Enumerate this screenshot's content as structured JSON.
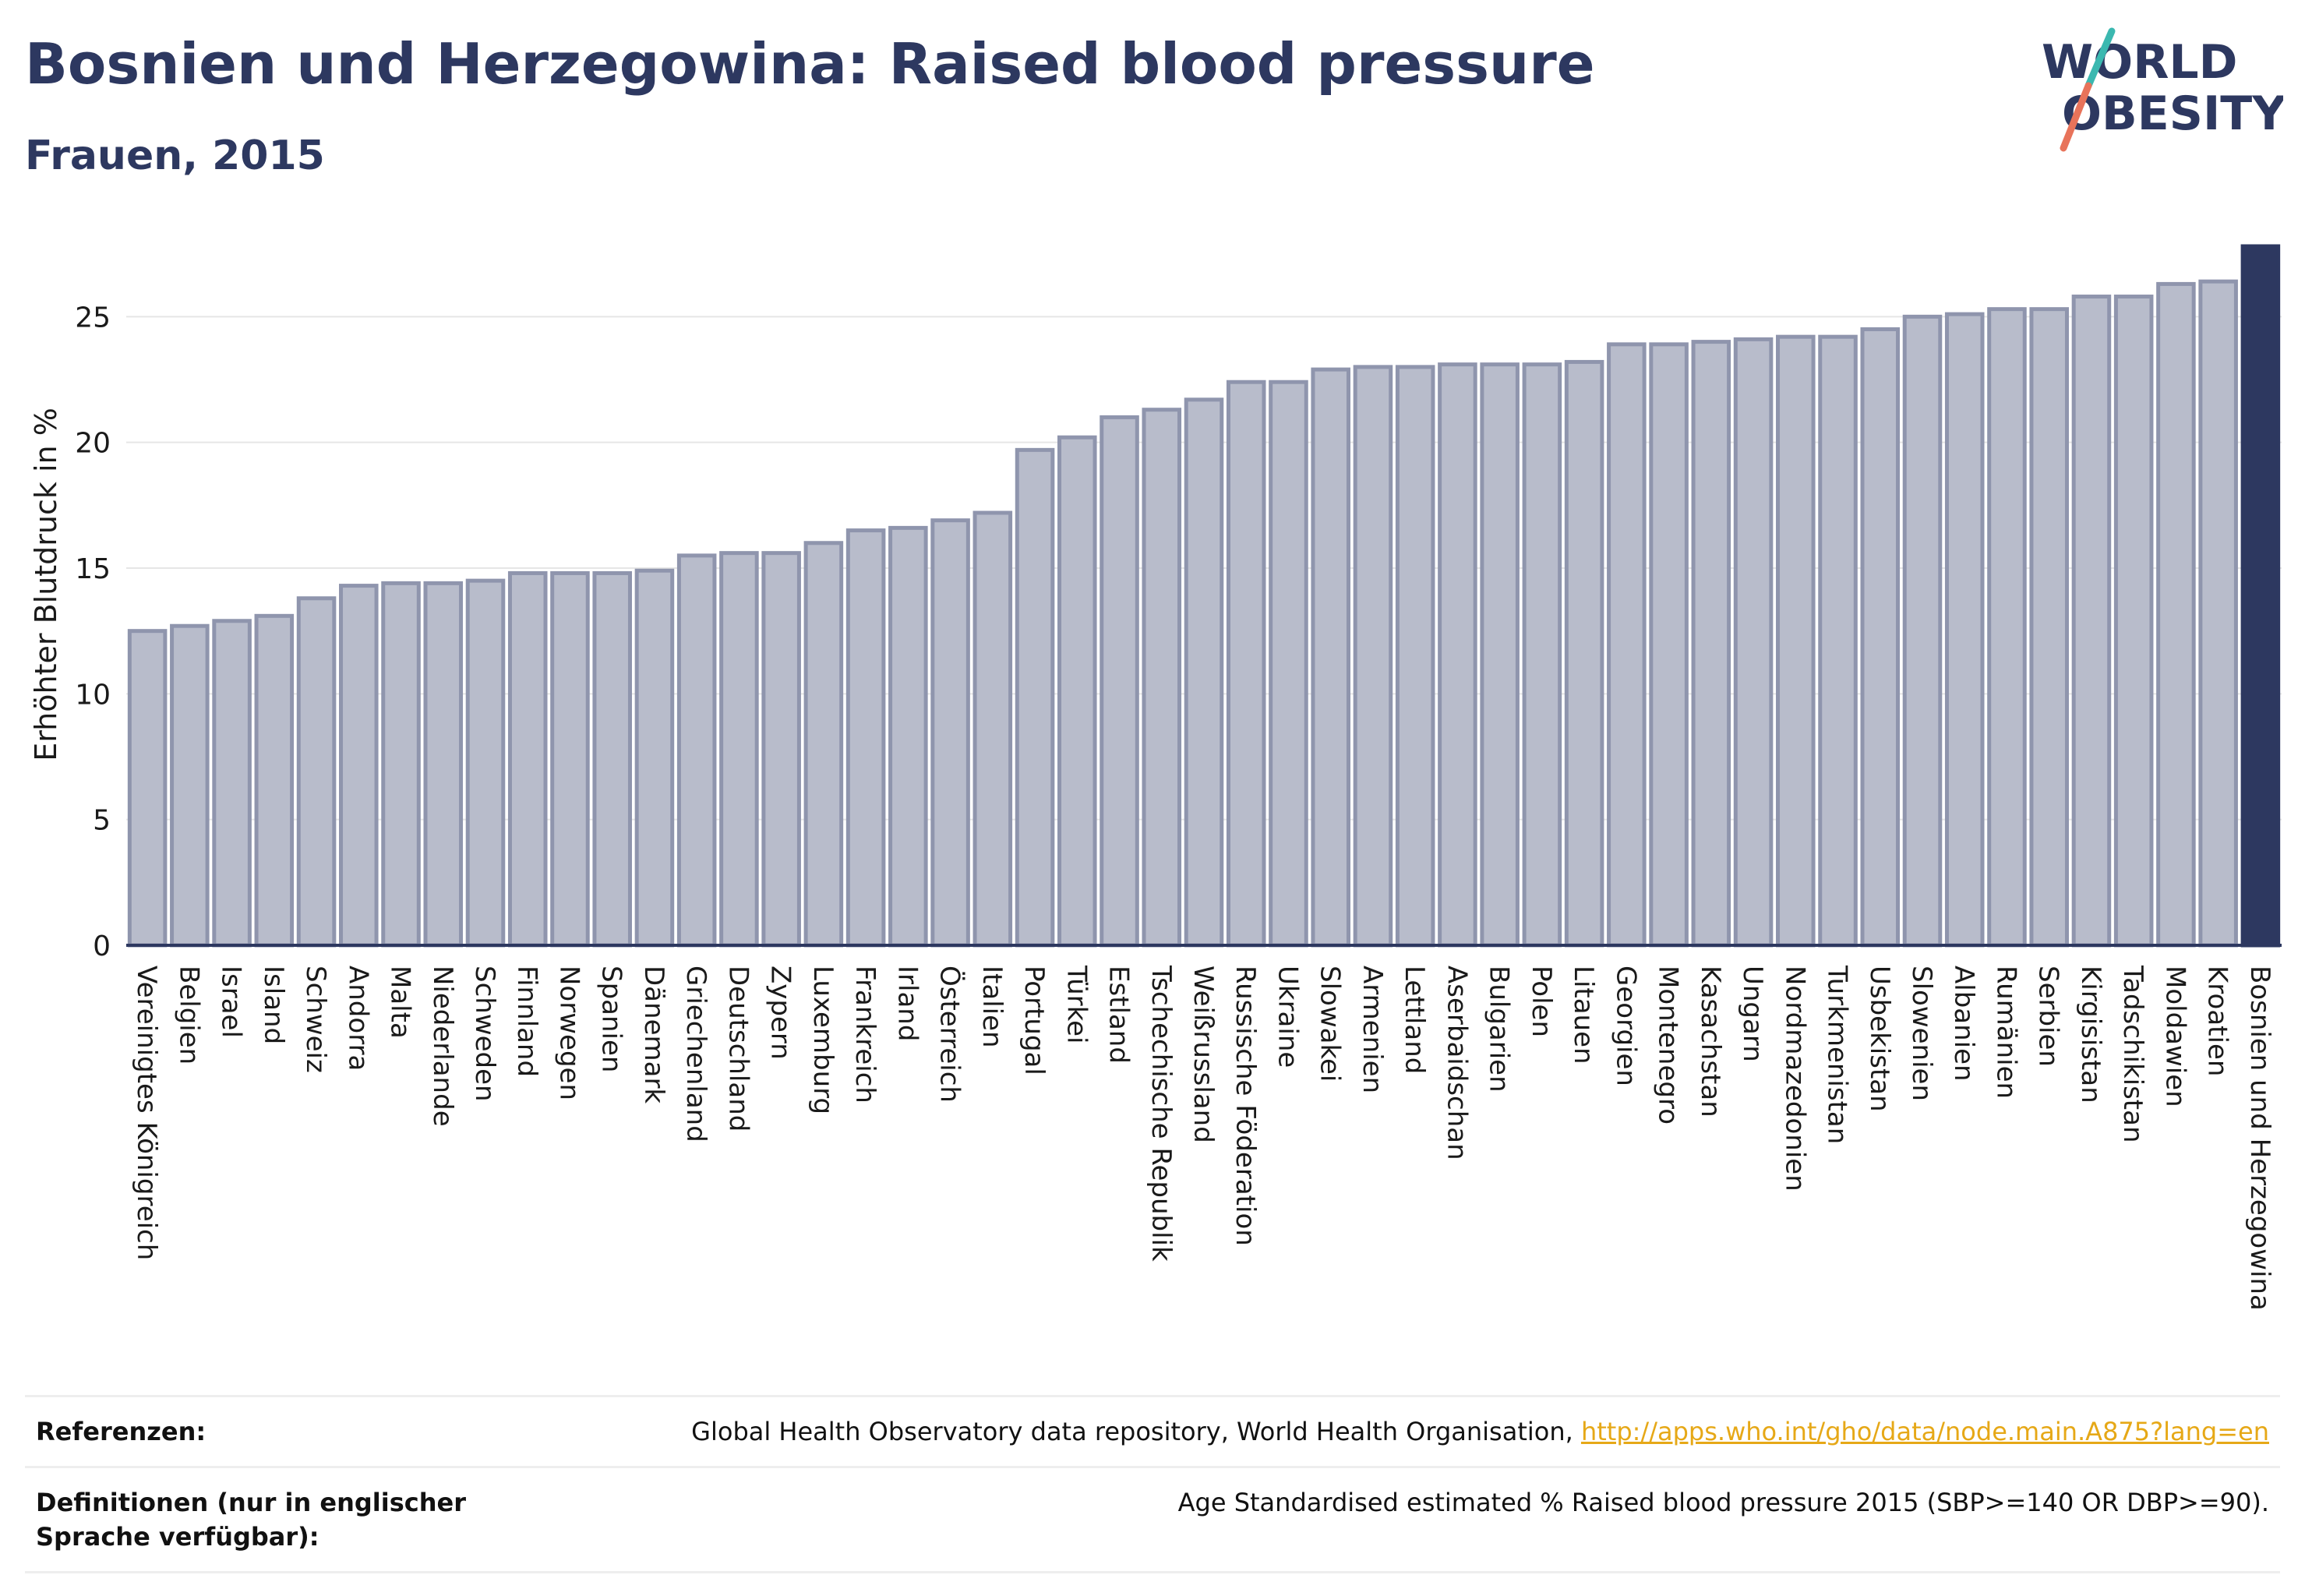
{
  "header": {
    "title": "Bosnien und Herzegowina: Raised blood pressure",
    "subtitle": "Frauen, 2015"
  },
  "logo": {
    "line1": "WORLD",
    "line2": "OBESITY"
  },
  "colors": {
    "bar_fill": "#b8bccb",
    "bar_stroke": "#8f95ad",
    "highlight": "#2d3860",
    "grid": "#e6e6e6",
    "axis": "#2d3860",
    "logo_teal": "#3bb8b0",
    "logo_coral": "#e8735a",
    "link": "#e6a817"
  },
  "chart_data": {
    "type": "bar",
    "ylabel": "Erhöhter Blutdruck in %",
    "ylim": [
      0,
      27.8
    ],
    "yticks": [
      0,
      5,
      10,
      15,
      20,
      25
    ],
    "grid": true,
    "highlight_category": "Bosnien und Herzegowina",
    "categories": [
      "Vereinigtes Königreich",
      "Belgien",
      "Israel",
      "Island",
      "Schweiz",
      "Andorra",
      "Malta",
      "Niederlande",
      "Schweden",
      "Finnland",
      "Norwegen",
      "Spanien",
      "Dänemark",
      "Griechenland",
      "Deutschland",
      "Zypern",
      "Luxemburg",
      "Frankreich",
      "Irland",
      "Österreich",
      "Italien",
      "Portugal",
      "Türkei",
      "Estland",
      "Tschechische Republik",
      "Weißrussland",
      "Russische Föderation",
      "Ukraine",
      "Slowakei",
      "Armenien",
      "Lettland",
      "Aserbaidschan",
      "Bulgarien",
      "Polen",
      "Litauen",
      "Georgien",
      "Montenegro",
      "Kasachstan",
      "Ungarn",
      "Nordmazedonien",
      "Turkmenistan",
      "Usbekistan",
      "Slowenien",
      "Albanien",
      "Rumänien",
      "Serbien",
      "Kirgisistan",
      "Tadschikistan",
      "Moldawien",
      "Kroatien",
      "Bosnien und Herzegowina"
    ],
    "values": [
      12.5,
      12.7,
      12.9,
      13.1,
      13.8,
      14.3,
      14.4,
      14.4,
      14.5,
      14.8,
      14.8,
      14.8,
      14.9,
      15.5,
      15.6,
      15.6,
      16.0,
      16.5,
      16.6,
      16.9,
      17.2,
      19.7,
      20.2,
      21.0,
      21.3,
      21.7,
      22.4,
      22.4,
      22.9,
      23.0,
      23.0,
      23.1,
      23.1,
      23.1,
      23.2,
      23.9,
      23.9,
      24.0,
      24.1,
      24.2,
      24.2,
      24.5,
      25.0,
      25.1,
      25.3,
      25.3,
      25.8,
      25.8,
      26.3,
      26.4,
      27.8
    ]
  },
  "footer": {
    "references_label": "Referenzen:",
    "references_text": "Global Health Observatory data repository, World Health Organisation, ",
    "references_link": "http://apps.who.int/gho/data/node.main.A875?lang=en",
    "definitions_label": "Definitionen (nur in englischer Sprache verfügbar):",
    "definitions_text": "Age Standardised estimated % Raised blood pressure 2015 (SBP>=140 OR DBP>=90)."
  }
}
